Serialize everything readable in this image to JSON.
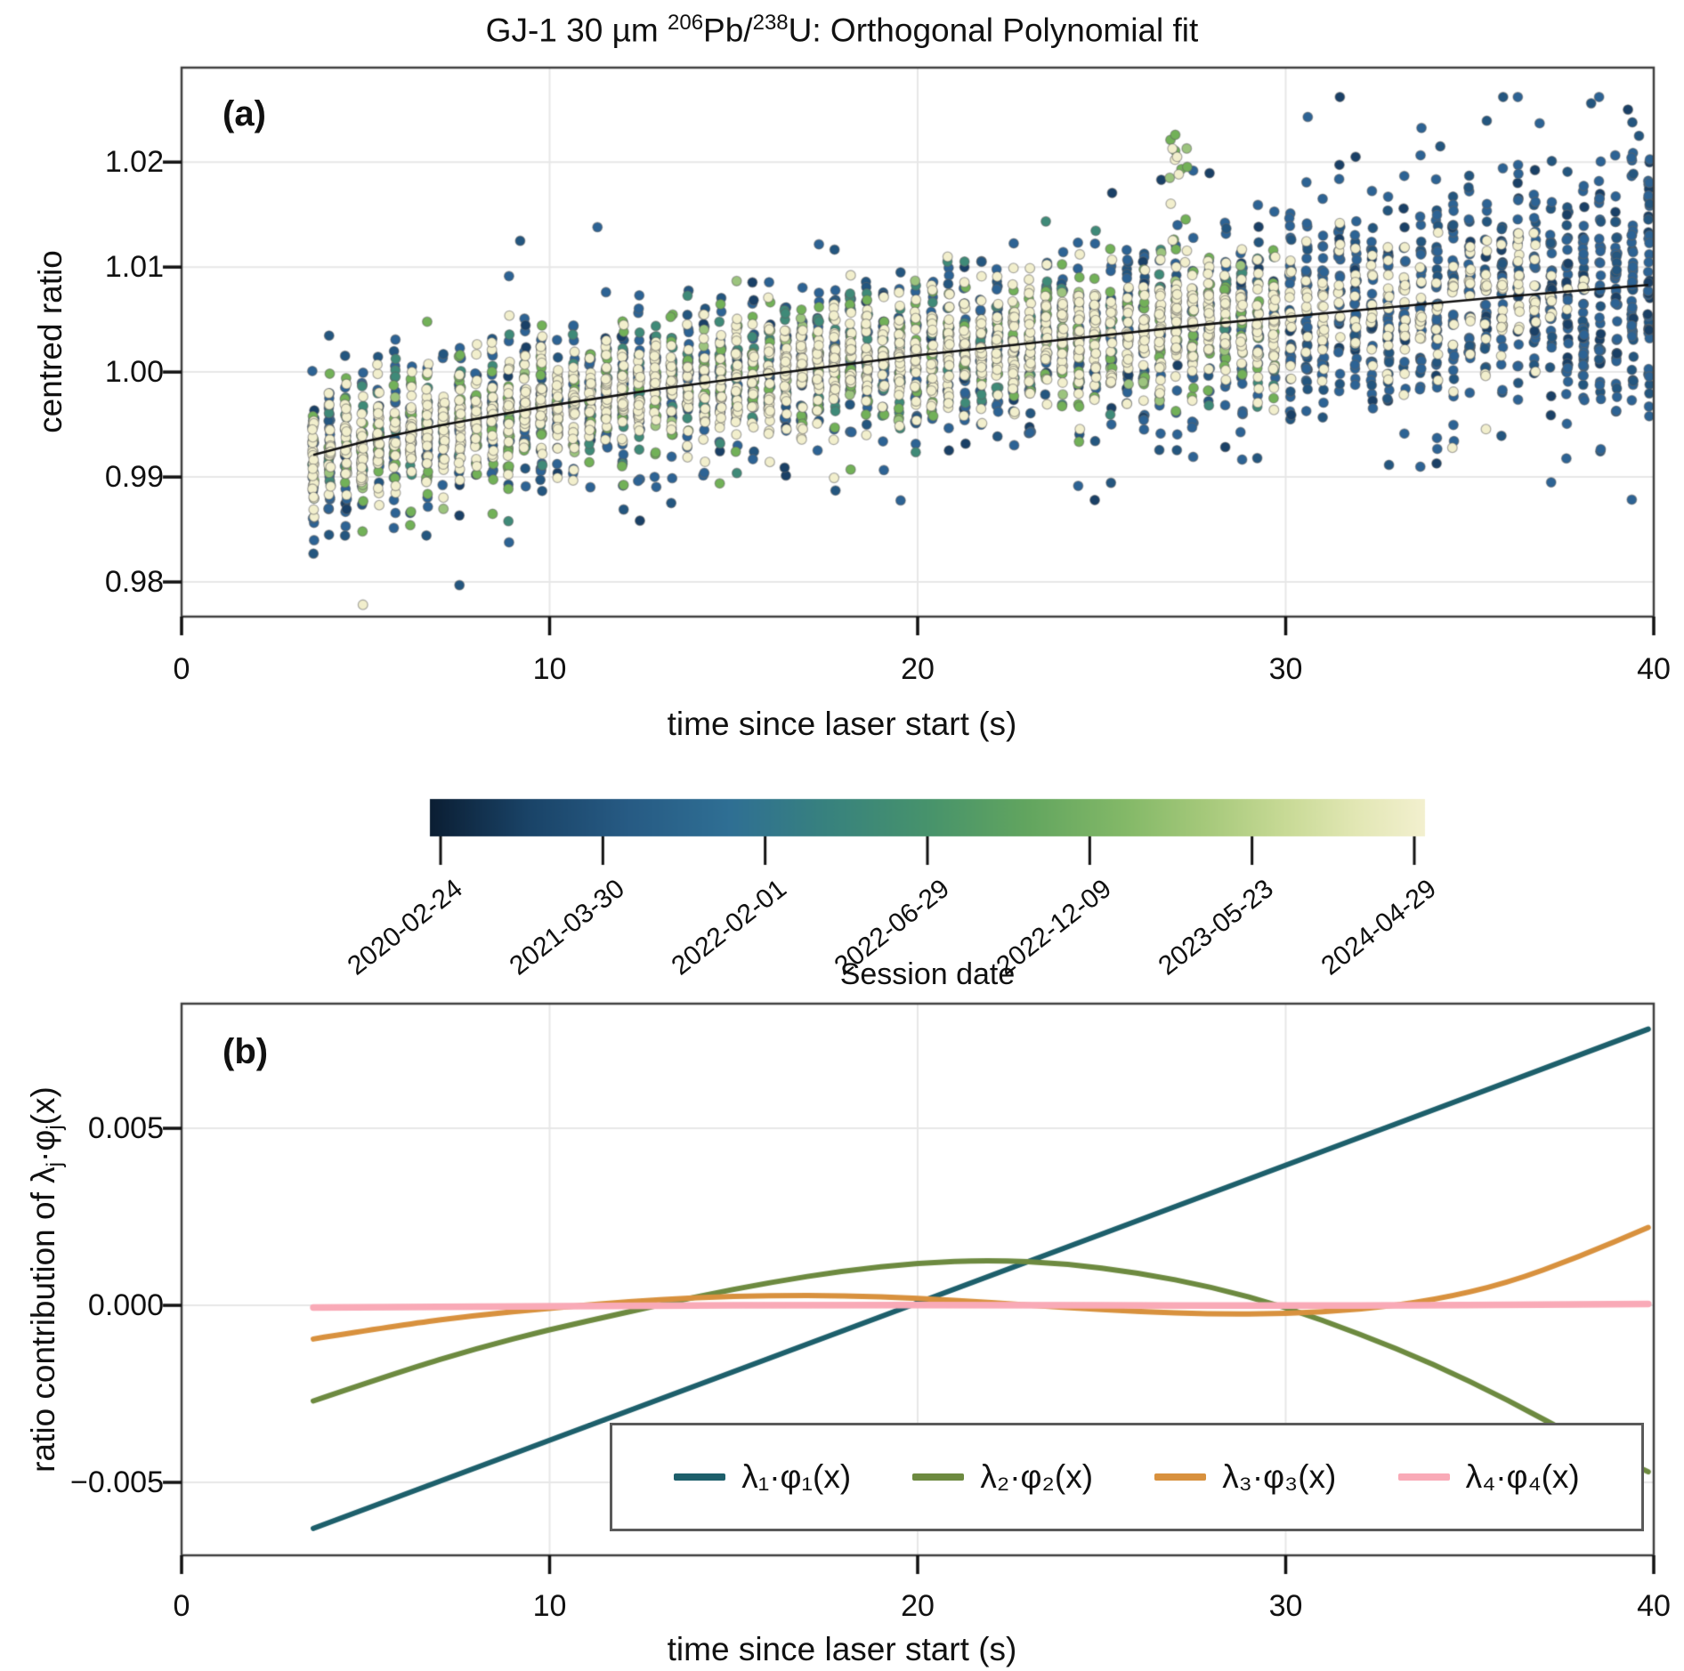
{
  "chart_data": {
    "title": {
      "p1": "GJ-1 30 µm ",
      "sup1": "206",
      "p2": "Pb/",
      "sup2": "238",
      "p3": "U: Orthogonal Polynomial fit"
    },
    "xaxis": {
      "label": "time since laser start (s)",
      "ticks": [
        "0",
        "10",
        "20",
        "30",
        "40"
      ],
      "tick_values": [
        0,
        10,
        20,
        30,
        40
      ],
      "lim": [
        0,
        40
      ],
      "grid_x": [
        10,
        20,
        30
      ]
    },
    "panel_a": {
      "type": "scatter",
      "label": "(a)",
      "ylabel": "centred ratio",
      "ytick_labels": [
        "0.98",
        "0.99",
        "1.00",
        "1.01",
        "1.02"
      ],
      "ytick_values": [
        0.98,
        0.99,
        1.0,
        1.01,
        1.02
      ],
      "ylim": [
        0.9767,
        1.029
      ],
      "fit_line": {
        "name": "orthogonal-polynomial-fit-curve",
        "color": "#111111",
        "points": [
          [
            3.58,
            0.9921
          ],
          [
            5,
            0.9934
          ],
          [
            7,
            0.9949
          ],
          [
            10,
            0.9968
          ],
          [
            13,
            0.9984
          ],
          [
            16,
            0.9998
          ],
          [
            20,
            1.0016
          ],
          [
            24,
            1.0031
          ],
          [
            28,
            1.0046
          ],
          [
            32,
            1.0059
          ],
          [
            36,
            1.0072
          ],
          [
            39.85,
            1.0083
          ]
        ]
      },
      "scatter": {
        "description": "dense columns of single-sweep ratios, coloured by session date",
        "t_start": 3.58,
        "t_step": 0.4425,
        "t_end": 39.88,
        "long_session_cutoff": 30.1,
        "marker_radius": 5.4,
        "marker_stroke": "rgba(100,100,100,0.5)",
        "groups": {
          "blue": {
            "session": "2020-2021",
            "colors": [
              "#2d6394",
              "#24567f",
              "#1a4066"
            ],
            "weights": [
              0.6,
              0.25,
              0.15
            ]
          },
          "teal": {
            "session": "2022",
            "colors": [
              "#3f8a78"
            ],
            "weights": [
              1
            ]
          },
          "green": {
            "session": "2023",
            "colors": [
              "#72b158",
              "#9cc47e"
            ],
            "weights": [
              0.8,
              0.2
            ]
          },
          "cream": {
            "session": "2024",
            "colors": [
              "#f2efcd"
            ],
            "weights": [
              1
            ]
          }
        },
        "mix_short": {
          "cream": 0.4,
          "green": 0.17,
          "teal": 0.11,
          "blue": 0.32
        },
        "mix_long": {
          "cream": 0.3,
          "blue": 0.7
        },
        "cream_fade_t": [
          37,
          38.4
        ],
        "points_per_column": {
          "short": 54,
          "long": 42
        },
        "sigma": {
          "cream": [
            0.0023,
            0.0036
          ],
          "green": [
            0.003,
            0.0042
          ],
          "teal": [
            0.003,
            0.0042
          ],
          "blue": [
            0.004,
            0.0062
          ]
        },
        "outlier_prob": 0.013,
        "clamp": [
          0.9775,
          1.0262
        ],
        "featured_points": [
          {
            "t": 7.55,
            "y": 0.9797,
            "group": "blue"
          },
          {
            "t": 27.0,
            "y": 1.0226,
            "group": "green"
          },
          {
            "t": 27.05,
            "y": 1.0205,
            "group": "cream"
          },
          {
            "t": 26.85,
            "y": 1.0185,
            "group": "green"
          },
          {
            "t": 30.6,
            "y": 1.0243,
            "group": "blue"
          },
          {
            "t": 36.9,
            "y": 1.0237,
            "group": "blue"
          },
          {
            "t": 38.3,
            "y": 1.0256,
            "group": "blue"
          },
          {
            "t": 39.3,
            "y": 1.025,
            "group": "blue"
          },
          {
            "t": 39.6,
            "y": 1.0225,
            "group": "blue"
          },
          {
            "t": 34.2,
            "y": 1.0215,
            "group": "blue"
          },
          {
            "t": 31.9,
            "y": 1.0205,
            "group": "blue"
          },
          {
            "t": 11.3,
            "y": 1.0138,
            "group": "blue"
          },
          {
            "t": 9.2,
            "y": 1.0125,
            "group": "blue"
          }
        ],
        "spike_cluster": {
          "t_range": [
            26.8,
            27.35
          ],
          "y_range": [
            1.01,
            1.0226
          ],
          "n": 14,
          "groups": [
            "green",
            "cream"
          ]
        }
      }
    },
    "colorbar": {
      "label": "Session date",
      "tick_labels": [
        "2020-02-24",
        "2021-03-30",
        "2022-02-01",
        "2022-06-29",
        "2022-12-09",
        "2023-05-23",
        "2024-04-29"
      ],
      "stops": [
        [
          0,
          "#0b1e33"
        ],
        [
          0.1,
          "#1a4468"
        ],
        [
          0.2,
          "#275b84"
        ],
        [
          0.3,
          "#2f6f94"
        ],
        [
          0.4,
          "#38827e"
        ],
        [
          0.5,
          "#47936c"
        ],
        [
          0.6,
          "#62a55f"
        ],
        [
          0.7,
          "#84b968"
        ],
        [
          0.78,
          "#a6c97b"
        ],
        [
          0.86,
          "#c8da96"
        ],
        [
          0.93,
          "#e2e7b4"
        ],
        [
          1,
          "#f3f0cf"
        ]
      ]
    },
    "panel_b": {
      "type": "line",
      "label": "(b)",
      "ylabel_parts": {
        "p1": "ratio contribution of λ",
        "sub1": "j",
        "p2": "·φ",
        "sub2": "j",
        "p3": "(x)"
      },
      "ytick_labels": [
        "0.005",
        "0.000",
        "−0.005"
      ],
      "ytick_values": [
        0.005,
        0.0,
        -0.005
      ],
      "ylim": [
        -0.00706,
        0.00852
      ],
      "legend_position": "lower right, inside axes",
      "series": [
        {
          "label": "λ₁·φ₁(x)",
          "color": "#1d5f6b",
          "points": [
            [
              3.58,
              -0.0063
            ],
            [
              10,
              -0.00381
            ],
            [
              20,
              7e-05
            ],
            [
              30,
              0.00395
            ],
            [
              39.85,
              0.0078
            ]
          ]
        },
        {
          "label": "λ₂·φ₂(x)",
          "color": "#6d8a40",
          "points": [
            [
              3.58,
              -0.0027
            ],
            [
              6,
              -0.00185
            ],
            [
              8,
              -0.00122
            ],
            [
              10,
              -0.00068
            ],
            [
              12,
              -0.00022
            ],
            [
              14,
              0.00025
            ],
            [
              16,
              0.00065
            ],
            [
              18,
              0.00098
            ],
            [
              20,
              0.0012
            ],
            [
              22,
              0.00128
            ],
            [
              24,
              0.00118
            ],
            [
              26,
              0.00092
            ],
            [
              28,
              0.00052
            ],
            [
              30,
              -5e-05
            ],
            [
              32,
              -0.0008
            ],
            [
              34,
              -0.00165
            ],
            [
              36,
              -0.00265
            ],
            [
              38,
              -0.00378
            ],
            [
              39.85,
              -0.0047
            ]
          ]
        },
        {
          "label": "λ₃·φ₃(x)",
          "color": "#d8913e",
          "points": [
            [
              3.58,
              -0.00095
            ],
            [
              6,
              -0.00055
            ],
            [
              8,
              -0.00028
            ],
            [
              10,
              -8e-05
            ],
            [
              12,
              0.0001
            ],
            [
              14,
              0.00022
            ],
            [
              16,
              0.00028
            ],
            [
              18,
              0.00028
            ],
            [
              20,
              0.0002
            ],
            [
              22,
              8e-05
            ],
            [
              24,
              -6e-05
            ],
            [
              26,
              -0.00018
            ],
            [
              28,
              -0.00025
            ],
            [
              30,
              -0.00024
            ],
            [
              32,
              -0.00012
            ],
            [
              34,
              0.00014
            ],
            [
              36,
              0.00062
            ],
            [
              38,
              0.00138
            ],
            [
              39.85,
              0.0022
            ]
          ]
        },
        {
          "label": "λ₄·φ₄(x)",
          "color": "#f9aab7",
          "points": [
            [
              3.58,
              -6e-05
            ],
            [
              10,
              -2e-05
            ],
            [
              20,
              2e-05
            ],
            [
              30,
              -2e-05
            ],
            [
              39.85,
              4e-05
            ]
          ]
        }
      ]
    }
  }
}
